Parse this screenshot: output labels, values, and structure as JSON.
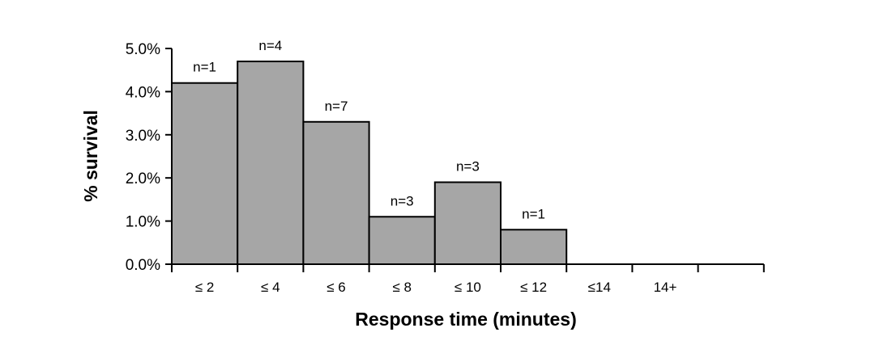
{
  "chart_data": {
    "type": "bar",
    "title": "",
    "xlabel": "Response time (minutes)",
    "ylabel": "% survival",
    "categories": [
      "≤ 2",
      "≤ 4",
      "≤ 6",
      "≤ 8",
      "≤ 10",
      "≤ 12",
      "≤14",
      "14+"
    ],
    "values": [
      4.2,
      4.7,
      3.3,
      1.1,
      1.9,
      0.8,
      0,
      0
    ],
    "data_labels": [
      "n=1",
      "n=4",
      "n=7",
      "n=3",
      "n=3",
      "n=1",
      "",
      ""
    ],
    "ylim": [
      0,
      5
    ],
    "yticks": [
      "0.0%",
      "1.0%",
      "2.0%",
      "3.0%",
      "4.0%",
      "5.0%"
    ],
    "grid": false,
    "legend": "none",
    "bar_color": "#a6a6a6",
    "edge_color": "#000000"
  }
}
